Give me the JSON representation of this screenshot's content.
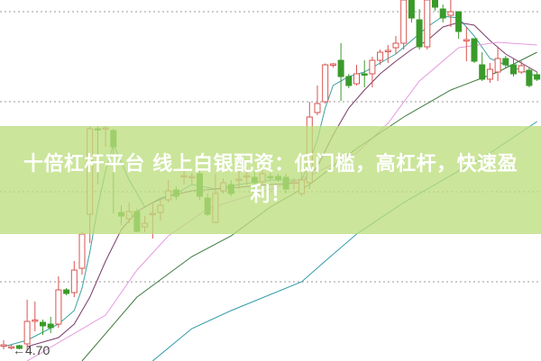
{
  "banner": {
    "text": "十倍杠杆平台 线上白银配资：低门槛，高杠杆，快速盈利！"
  },
  "chart_data": {
    "type": "candlestick",
    "low_marker": {
      "label": "4.70",
      "arrow": "←"
    },
    "gridlines": [
      5.0,
      5.4,
      5.8,
      6.2
    ],
    "colors": {
      "up": "#d9534f",
      "down": "#3a9a2a",
      "ma5": "#3aa0a0",
      "ma10": "#7a3a6a",
      "ma20": "#e59ae0",
      "ma30": "#3c7a3c",
      "ma_long": "#2f9aa8",
      "grid": "#999999",
      "banner": "#bcde7d"
    },
    "candles": [
      [
        0,
        4.72,
        4.74,
        4.7,
        4.72
      ],
      [
        1,
        4.712,
        4.72,
        4.7,
        4.712
      ],
      [
        2,
        4.716,
        4.72,
        4.7,
        4.704
      ],
      [
        3,
        4.724,
        4.92,
        4.692,
        4.824
      ],
      [
        4,
        4.828,
        4.912,
        4.78,
        4.83
      ],
      [
        5,
        4.82,
        4.832,
        4.764,
        4.804
      ],
      [
        6,
        4.812,
        4.844,
        4.772,
        4.796
      ],
      [
        7,
        4.812,
        5.024,
        4.796,
        4.964
      ],
      [
        8,
        4.964,
        4.972,
        4.94,
        4.948
      ],
      [
        9,
        4.952,
        5.092,
        4.932,
        5.052
      ],
      [
        10,
        5.06,
        5.22,
        5.032,
        5.212
      ],
      [
        11,
        5.3,
        5.692,
        5.172,
        5.68
      ],
      [
        12,
        5.68,
        5.692,
        5.432,
        5.676
      ],
      [
        13,
        5.68,
        5.692,
        5.6,
        5.684
      ],
      [
        14,
        5.672,
        5.68,
        5.304,
        5.6
      ],
      [
        15,
        5.308,
        5.34,
        5.252,
        5.292
      ],
      [
        16,
        5.28,
        5.352,
        5.26,
        5.312
      ],
      [
        17,
        5.312,
        5.324,
        5.22,
        5.224
      ],
      [
        18,
        5.244,
        5.292,
        5.22,
        5.26
      ],
      [
        19,
        5.3,
        5.352,
        5.192,
        5.304
      ],
      [
        20,
        5.308,
        5.364,
        5.272,
        5.34
      ],
      [
        21,
        5.364,
        5.452,
        5.352,
        5.404
      ],
      [
        22,
        5.408,
        5.424,
        5.364,
        5.38
      ],
      [
        23,
        5.47,
        5.492,
        5.432,
        5.472
      ],
      [
        24,
        5.464,
        5.484,
        5.432,
        5.468
      ],
      [
        25,
        5.48,
        5.492,
        5.364,
        5.38
      ],
      [
        26,
        5.372,
        5.392,
        5.292,
        5.3
      ],
      [
        27,
        5.264,
        5.48,
        5.26,
        5.392
      ],
      [
        28,
        5.404,
        5.46,
        5.392,
        5.44
      ],
      [
        29,
        5.432,
        5.452,
        5.38,
        5.392
      ],
      [
        30,
        5.452,
        5.492,
        5.412,
        5.456
      ],
      [
        31,
        5.468,
        5.512,
        5.432,
        5.472
      ],
      [
        32,
        5.464,
        5.492,
        5.412,
        5.44
      ],
      [
        33,
        5.444,
        5.5,
        5.432,
        5.48
      ],
      [
        34,
        5.468,
        5.484,
        5.452,
        5.464
      ],
      [
        35,
        5.468,
        5.48,
        5.444,
        5.456
      ],
      [
        36,
        5.464,
        5.48,
        5.392,
        5.412
      ],
      [
        37,
        5.44,
        5.46,
        5.412,
        5.444
      ],
      [
        38,
        5.392,
        5.492,
        5.38,
        5.452
      ],
      [
        39,
        5.44,
        5.8,
        5.412,
        5.732
      ],
      [
        40,
        5.752,
        5.872,
        5.74,
        5.792
      ],
      [
        41,
        5.8,
        5.97,
        5.792,
        5.964
      ],
      [
        42,
        5.964,
        5.972,
        5.952,
        5.968
      ],
      [
        43,
        5.984,
        6.06,
        5.804,
        5.912
      ],
      [
        44,
        5.912,
        5.924,
        5.86,
        5.872
      ],
      [
        45,
        5.88,
        5.964,
        5.872,
        5.924
      ],
      [
        46,
        5.924,
        5.984,
        5.864,
        5.92
      ],
      [
        47,
        5.924,
        6.0,
        5.864,
        5.984
      ],
      [
        48,
        5.984,
        6.032,
        5.964,
        6.02
      ],
      [
        49,
        6.024,
        6.052,
        5.972,
        6.028
      ],
      [
        50,
        6.04,
        6.092,
        6.012,
        6.06
      ],
      [
        51,
        6.06,
        6.292,
        6.032,
        6.252
      ],
      [
        52,
        6.292,
        6.332,
        6.152,
        6.172
      ],
      [
        53,
        6.164,
        6.212,
        6.032,
        6.044
      ],
      [
        54,
        6.044,
        6.292,
        6.032,
        6.252
      ],
      [
        55,
        6.252,
        6.272,
        6.204,
        6.22
      ],
      [
        56,
        6.212,
        6.232,
        6.152,
        6.172
      ],
      [
        57,
        6.184,
        6.252,
        6.132,
        6.2
      ],
      [
        58,
        6.2,
        6.2,
        6.08,
        6.112
      ],
      [
        59,
        6.072,
        6.132,
        5.98,
        6.076
      ],
      [
        60,
        6.08,
        6.08,
        5.972,
        5.98
      ],
      [
        61,
        5.964,
        6.02,
        5.892,
        5.9
      ],
      [
        62,
        5.9,
        5.972,
        5.884,
        5.944
      ],
      [
        63,
        5.932,
        6.04,
        5.892,
        5.992
      ],
      [
        64,
        5.992,
        6.004,
        5.952,
        5.964
      ],
      [
        65,
        5.964,
        5.992,
        5.912,
        5.924
      ],
      [
        66,
        5.932,
        5.98,
        5.924,
        5.96
      ],
      [
        67,
        5.94,
        5.952,
        5.864,
        5.872
      ],
      [
        68,
        5.92,
        5.932,
        5.892,
        5.9
      ]
    ],
    "moving_averages": [
      {
        "key": "ma5",
        "points": [
          [
            0,
            4.712
          ],
          [
            3,
            4.74
          ],
          [
            7,
            4.812
          ],
          [
            9,
            4.872
          ],
          [
            10,
            4.972
          ],
          [
            11,
            5.132
          ],
          [
            12,
            5.332
          ],
          [
            13,
            5.492
          ],
          [
            14,
            5.612
          ],
          [
            15,
            5.532
          ],
          [
            16,
            5.452
          ],
          [
            17,
            5.392
          ],
          [
            18,
            5.332
          ],
          [
            19,
            5.352
          ],
          [
            20,
            5.372
          ],
          [
            22,
            5.392
          ],
          [
            24,
            5.432
          ],
          [
            27,
            5.412
          ],
          [
            30,
            5.432
          ],
          [
            34,
            5.452
          ],
          [
            38,
            5.452
          ],
          [
            39,
            5.532
          ],
          [
            40,
            5.632
          ],
          [
            41,
            5.772
          ],
          [
            42,
            5.872
          ],
          [
            44,
            5.912
          ],
          [
            46,
            5.932
          ],
          [
            48,
            5.972
          ],
          [
            50,
            6.012
          ],
          [
            52,
            6.072
          ],
          [
            54,
            6.132
          ],
          [
            56,
            6.18
          ],
          [
            58,
            6.172
          ],
          [
            60,
            6.092
          ],
          [
            62,
            5.992
          ],
          [
            64,
            5.964
          ],
          [
            66,
            5.94
          ],
          [
            68,
            5.912
          ]
        ]
      },
      {
        "key": "ma10",
        "points": [
          [
            3,
            4.712
          ],
          [
            7,
            4.752
          ],
          [
            9,
            4.812
          ],
          [
            11,
            4.932
          ],
          [
            13,
            5.092
          ],
          [
            15,
            5.232
          ],
          [
            17,
            5.312
          ],
          [
            19,
            5.352
          ],
          [
            21,
            5.38
          ],
          [
            24,
            5.404
          ],
          [
            27,
            5.412
          ],
          [
            30,
            5.42
          ],
          [
            34,
            5.432
          ],
          [
            38,
            5.44
          ],
          [
            40,
            5.512
          ],
          [
            42,
            5.652
          ],
          [
            44,
            5.772
          ],
          [
            46,
            5.852
          ],
          [
            48,
            5.924
          ],
          [
            50,
            5.98
          ],
          [
            52,
            6.032
          ],
          [
            54,
            6.072
          ],
          [
            56,
            6.132
          ],
          [
            58,
            6.152
          ],
          [
            60,
            6.14
          ],
          [
            62,
            6.072
          ],
          [
            64,
            6.012
          ],
          [
            66,
            5.972
          ],
          [
            68,
            5.932
          ]
        ]
      },
      {
        "key": "ma20",
        "points": [
          [
            3,
            4.648
          ],
          [
            13,
            4.852
          ],
          [
            17,
            5.052
          ],
          [
            21,
            5.204
          ],
          [
            26,
            5.324
          ],
          [
            34,
            5.412
          ],
          [
            39,
            5.472
          ],
          [
            45,
            5.572
          ],
          [
            49,
            5.704
          ],
          [
            53,
            5.892
          ],
          [
            58,
            6.04
          ],
          [
            63,
            6.064
          ],
          [
            68,
            6.052
          ]
        ]
      },
      {
        "key": "ma30",
        "points": [
          [
            10,
            4.648
          ],
          [
            17,
            4.932
          ],
          [
            24,
            5.112
          ],
          [
            29,
            5.204
          ],
          [
            34,
            5.332
          ],
          [
            39,
            5.432
          ],
          [
            45,
            5.592
          ],
          [
            51,
            5.732
          ],
          [
            57,
            5.852
          ],
          [
            63,
            5.932
          ],
          [
            68,
            6.02
          ]
        ]
      },
      {
        "key": "ma_long",
        "points": [
          [
            19,
            4.648
          ],
          [
            24,
            4.792
          ],
          [
            29,
            4.872
          ],
          [
            38,
            5.0
          ],
          [
            41,
            5.092
          ],
          [
            45,
            5.212
          ],
          [
            51,
            5.352
          ],
          [
            56,
            5.452
          ],
          [
            62,
            5.572
          ],
          [
            68,
            5.712
          ]
        ]
      }
    ]
  }
}
